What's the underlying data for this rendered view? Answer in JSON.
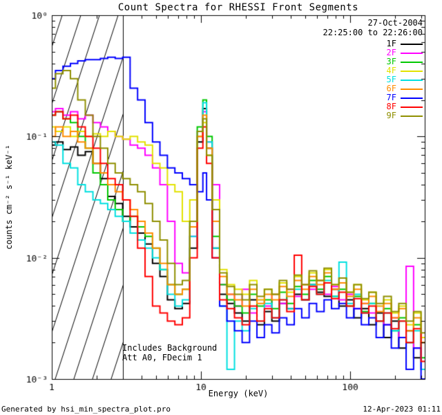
{
  "header": {
    "title": "Count Spectra for RHESSI Front Segments"
  },
  "observation": {
    "date": "27-Oct-2004",
    "time_range": "22:25:00 to 22:26:00"
  },
  "annotations": {
    "line1": "Includes Background",
    "line2": "Att A0, FDecim 1"
  },
  "footer": {
    "left": "Generated by hsi_min_spectra_plot.pro",
    "right": "12-Apr-2023 01:11"
  },
  "excluded_region": {
    "x_min": 1,
    "x_max": 3,
    "style": "hatched"
  },
  "axes": {
    "x": {
      "label": "Energy (keV)",
      "scale": "log",
      "range": [
        1,
        316
      ],
      "major_ticks": [
        1,
        10,
        100
      ],
      "tick_labels": [
        "1",
        "10",
        "100"
      ]
    },
    "y": {
      "label": "counts cm⁻² s⁻¹ keV⁻¹",
      "scale": "log",
      "range": [
        0.001,
        1
      ],
      "major_ticks": [
        0.001,
        0.01,
        0.1,
        1
      ],
      "tick_labels": [
        "10⁻³",
        "10⁻²",
        "10⁻¹",
        "10⁰"
      ]
    }
  },
  "legend": {
    "items": [
      {
        "label": "1F",
        "color": "#000000"
      },
      {
        "label": "2F",
        "color": "#ff00ff"
      },
      {
        "label": "3F",
        "color": "#00c800"
      },
      {
        "label": "4F",
        "color": "#e2e200"
      },
      {
        "label": "5F",
        "color": "#00e0e0"
      },
      {
        "label": "6F",
        "color": "#ff8c00"
      },
      {
        "label": "7F",
        "color": "#0000ff"
      },
      {
        "label": "8F",
        "color": "#ff0000"
      },
      {
        "label": "9F",
        "color": "#8f8f00"
      }
    ]
  },
  "chart_data": {
    "type": "line",
    "mode": "histogram-step",
    "title": "Count Spectra for RHESSI Front Segments",
    "xlabel": "Energy (keV)",
    "ylabel": "counts cm⁻² s⁻¹ keV⁻¹",
    "xscale": "log",
    "yscale": "log",
    "xlim": [
      1,
      316
    ],
    "ylim": [
      0.001,
      1
    ],
    "legend_position": "top-right",
    "grid": false,
    "x": [
      1.0,
      1.12,
      1.26,
      1.41,
      1.58,
      1.78,
      2.0,
      2.24,
      2.51,
      2.82,
      3.16,
      3.55,
      3.98,
      4.47,
      5.01,
      5.62,
      6.31,
      7.08,
      7.94,
      8.91,
      10.0,
      10.6,
      11.2,
      12.6,
      14.1,
      15.8,
      17.8,
      20.0,
      22.4,
      25.1,
      28.2,
      31.6,
      35.5,
      39.8,
      44.7,
      50.1,
      56.2,
      63.1,
      70.8,
      79.4,
      89.1,
      100,
      112,
      126,
      141,
      158,
      178,
      200,
      224,
      251,
      282,
      316
    ],
    "series": [
      {
        "name": "1F",
        "color": "#000000",
        "values": [
          0.085,
          0.09,
          0.078,
          0.082,
          0.07,
          0.075,
          0.06,
          0.045,
          0.032,
          0.028,
          0.022,
          0.018,
          0.016,
          0.013,
          0.009,
          0.007,
          0.0045,
          0.0038,
          0.0042,
          0.012,
          0.09,
          0.17,
          0.08,
          0.012,
          0.005,
          0.0042,
          0.0035,
          0.003,
          0.0045,
          0.0028,
          0.0036,
          0.003,
          0.0042,
          0.0038,
          0.005,
          0.0045,
          0.006,
          0.0052,
          0.0048,
          0.0055,
          0.004,
          0.0045,
          0.0032,
          0.0038,
          0.0028,
          0.0035,
          0.0022,
          0.003,
          0.0018,
          0.0025,
          0.0015,
          0.002
        ]
      },
      {
        "name": "2F",
        "color": "#ff00ff",
        "values": [
          0.16,
          0.17,
          0.15,
          0.16,
          0.14,
          0.15,
          0.13,
          0.12,
          0.11,
          0.1,
          0.095,
          0.085,
          0.08,
          0.07,
          0.055,
          0.04,
          0.02,
          0.009,
          0.0075,
          0.015,
          0.1,
          0.16,
          0.09,
          0.04,
          0.006,
          0.005,
          0.004,
          0.0055,
          0.0035,
          0.0045,
          0.004,
          0.005,
          0.0042,
          0.0055,
          0.0048,
          0.006,
          0.0055,
          0.0065,
          0.005,
          0.0058,
          0.0045,
          0.005,
          0.0038,
          0.0042,
          0.0035,
          0.004,
          0.0028,
          0.0032,
          0.0022,
          0.0085,
          0.0018,
          0.0012
        ]
      },
      {
        "name": "3F",
        "color": "#00c800",
        "values": [
          0.15,
          0.16,
          0.14,
          0.13,
          0.1,
          0.08,
          0.05,
          0.04,
          0.03,
          0.025,
          0.02,
          0.022,
          0.018,
          0.015,
          0.012,
          0.008,
          0.006,
          0.005,
          0.0055,
          0.02,
          0.12,
          0.2,
          0.1,
          0.015,
          0.006,
          0.0045,
          0.004,
          0.0035,
          0.005,
          0.004,
          0.0045,
          0.0038,
          0.0052,
          0.0042,
          0.0058,
          0.005,
          0.0065,
          0.0055,
          0.007,
          0.0048,
          0.0055,
          0.004,
          0.0048,
          0.0036,
          0.0042,
          0.003,
          0.0038,
          0.0025,
          0.0032,
          0.002,
          0.0028,
          0.0015
        ]
      },
      {
        "name": "4F",
        "color": "#e2e200",
        "values": [
          0.12,
          0.11,
          0.12,
          0.1,
          0.11,
          0.1,
          0.105,
          0.1,
          0.11,
          0.1,
          0.095,
          0.1,
          0.09,
          0.085,
          0.06,
          0.055,
          0.04,
          0.035,
          0.02,
          0.03,
          0.1,
          0.13,
          0.07,
          0.03,
          0.008,
          0.006,
          0.0055,
          0.005,
          0.0065,
          0.0045,
          0.0055,
          0.005,
          0.0062,
          0.0052,
          0.007,
          0.006,
          0.0075,
          0.0065,
          0.008,
          0.006,
          0.0068,
          0.0052,
          0.006,
          0.0045,
          0.0052,
          0.004,
          0.0045,
          0.0035,
          0.004,
          0.0028,
          0.0035,
          0.0022
        ]
      },
      {
        "name": "5F",
        "color": "#00e0e0",
        "values": [
          0.09,
          0.085,
          0.06,
          0.055,
          0.04,
          0.035,
          0.03,
          0.028,
          0.025,
          0.022,
          0.02,
          0.016,
          0.014,
          0.012,
          0.01,
          0.008,
          0.005,
          0.004,
          0.0045,
          0.015,
          0.11,
          0.19,
          0.09,
          0.012,
          0.004,
          0.0012,
          0.003,
          0.0025,
          0.0038,
          0.003,
          0.0042,
          0.0032,
          0.0045,
          0.0038,
          0.0055,
          0.0045,
          0.006,
          0.005,
          0.0065,
          0.0048,
          0.0092,
          0.0042,
          0.005,
          0.0035,
          0.0042,
          0.003,
          0.0035,
          0.0025,
          0.003,
          0.002,
          0.0025,
          0.0012
        ]
      },
      {
        "name": "6F",
        "color": "#ff8c00",
        "values": [
          0.1,
          0.12,
          0.1,
          0.11,
          0.09,
          0.08,
          0.06,
          0.05,
          0.04,
          0.035,
          0.03,
          0.025,
          0.02,
          0.016,
          0.012,
          0.009,
          0.006,
          0.005,
          0.0055,
          0.018,
          0.1,
          0.15,
          0.08,
          0.02,
          0.007,
          0.005,
          0.0045,
          0.004,
          0.0055,
          0.0042,
          0.005,
          0.0045,
          0.0058,
          0.0048,
          0.0065,
          0.0055,
          0.007,
          0.006,
          0.0075,
          0.0055,
          0.0062,
          0.0048,
          0.0055,
          0.0042,
          0.0048,
          0.0036,
          0.0042,
          0.0032,
          0.0038,
          0.0025,
          0.0032,
          0.002
        ]
      },
      {
        "name": "7F",
        "color": "#0000ff",
        "values": [
          0.3,
          0.35,
          0.38,
          0.4,
          0.42,
          0.43,
          0.43,
          0.44,
          0.45,
          0.44,
          0.45,
          0.25,
          0.2,
          0.13,
          0.09,
          0.07,
          0.055,
          0.05,
          0.045,
          0.04,
          0.035,
          0.05,
          0.03,
          0.01,
          0.004,
          0.003,
          0.0025,
          0.002,
          0.003,
          0.0022,
          0.0028,
          0.0024,
          0.0032,
          0.0028,
          0.0038,
          0.0032,
          0.0042,
          0.0036,
          0.0045,
          0.0038,
          0.0042,
          0.0032,
          0.0038,
          0.0028,
          0.0032,
          0.0022,
          0.0028,
          0.0018,
          0.0022,
          0.0012,
          0.0018,
          0.001
        ]
      },
      {
        "name": "8F",
        "color": "#ff0000",
        "values": [
          0.15,
          0.16,
          0.14,
          0.15,
          0.12,
          0.1,
          0.08,
          0.06,
          0.045,
          0.04,
          0.03,
          0.022,
          0.012,
          0.007,
          0.004,
          0.0035,
          0.003,
          0.0028,
          0.0032,
          0.01,
          0.08,
          0.12,
          0.06,
          0.01,
          0.0045,
          0.0038,
          0.0032,
          0.0028,
          0.004,
          0.003,
          0.0038,
          0.0032,
          0.0045,
          0.0036,
          0.0105,
          0.0045,
          0.0058,
          0.005,
          0.0062,
          0.0046,
          0.0052,
          0.004,
          0.0046,
          0.0035,
          0.004,
          0.003,
          0.0035,
          0.0026,
          0.003,
          0.002,
          0.0026,
          0.0014
        ]
      },
      {
        "name": "9F",
        "color": "#8f8f00",
        "values": [
          0.25,
          0.33,
          0.35,
          0.3,
          0.2,
          0.15,
          0.1,
          0.08,
          0.06,
          0.05,
          0.045,
          0.04,
          0.035,
          0.028,
          0.02,
          0.014,
          0.009,
          0.006,
          0.0065,
          0.02,
          0.11,
          0.14,
          0.07,
          0.025,
          0.0075,
          0.0058,
          0.005,
          0.0045,
          0.006,
          0.0048,
          0.0055,
          0.005,
          0.0065,
          0.0055,
          0.0072,
          0.006,
          0.0078,
          0.0065,
          0.0082,
          0.006,
          0.0068,
          0.0052,
          0.006,
          0.0046,
          0.0052,
          0.0042,
          0.0048,
          0.0036,
          0.0042,
          0.003,
          0.0036,
          0.0024
        ]
      }
    ]
  }
}
